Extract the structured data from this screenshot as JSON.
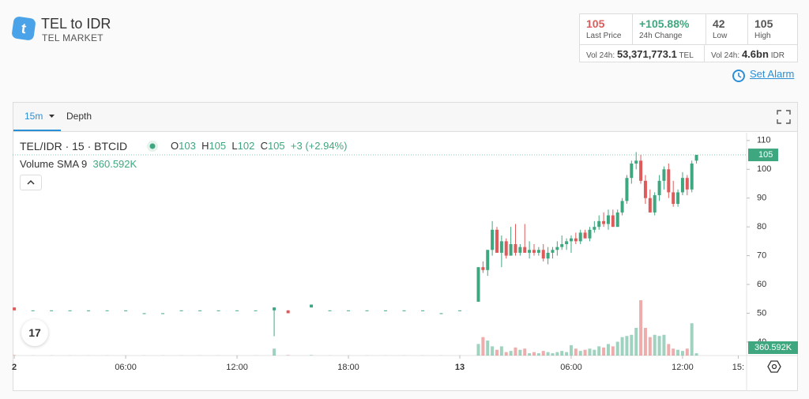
{
  "header": {
    "title": "TEL to IDR",
    "subtitle": "TEL MARKET",
    "logo": "t"
  },
  "stats": {
    "last_price": {
      "value": "105",
      "label": "Last Price"
    },
    "change": {
      "value": "+105.88%",
      "label": "24h Change"
    },
    "low": {
      "value": "42",
      "label": "Low"
    },
    "high": {
      "value": "105",
      "label": "High"
    },
    "vol_tel": {
      "label": "Vol 24h:",
      "value": "53,371,773.1",
      "unit": "TEL"
    },
    "vol_idr": {
      "label": "Vol 24h:",
      "value": "4.6bn",
      "unit": "IDR"
    }
  },
  "set_alarm": "Set Alarm",
  "tabs": [
    "15m",
    "Depth"
  ],
  "legend": {
    "symbol": "TEL/IDR · 15 · BTCID",
    "o_label": "O",
    "o": "103",
    "h_label": "H",
    "h": "105",
    "l_label": "L",
    "l": "102",
    "c_label": "C",
    "c": "105",
    "change": "+3 (+2.94%)",
    "sma_label": "Volume SMA 9",
    "sma_value": "360.592K"
  },
  "chart_data": {
    "type": "candlestick",
    "up_color": "#3fa77f",
    "down_color": "#df5a5a",
    "grid": false,
    "last_price": 105,
    "xlim": [
      -0.09,
      39.45
    ],
    "xticks": [
      {
        "value": 0,
        "label": "2"
      },
      {
        "value": 6,
        "label": "06:00"
      },
      {
        "value": 12,
        "label": "12:00"
      },
      {
        "value": 18,
        "label": "18:00"
      },
      {
        "value": 24,
        "label": "13"
      },
      {
        "value": 30,
        "label": "06:00"
      },
      {
        "value": 36,
        "label": "12:00"
      },
      {
        "value": 39,
        "label": "15:"
      }
    ],
    "ylim": [
      35.3,
      112.7
    ],
    "yticks": [
      40,
      50,
      60,
      70,
      80,
      90,
      100,
      110
    ],
    "x": [
      0,
      1,
      2,
      3,
      4,
      5,
      6,
      7,
      8,
      9,
      10,
      11,
      12,
      13,
      14,
      14.75,
      16,
      17,
      18,
      19,
      20,
      21,
      22,
      23,
      24,
      25,
      25.25,
      25.5,
      25.75,
      26,
      26.25,
      26.5,
      26.75,
      27,
      27.25,
      27.5,
      27.75,
      28,
      28.25,
      28.5,
      28.75,
      29,
      29.25,
      29.5,
      29.75,
      30,
      30.25,
      30.5,
      30.75,
      31,
      31.25,
      31.5,
      31.75,
      32,
      32.25,
      32.5,
      32.75,
      33,
      33.25,
      33.5,
      33.75,
      34,
      34.25,
      34.5,
      34.75,
      35,
      35.25,
      35.5,
      35.75,
      36,
      36.25,
      36.5,
      36.75
    ],
    "open": [
      52,
      51,
      51,
      51,
      51,
      51,
      51,
      50,
      50,
      51,
      51,
      51,
      51,
      51,
      51,
      51,
      52,
      51,
      51,
      51,
      51,
      51,
      51,
      50,
      51,
      54,
      66,
      65,
      72,
      79,
      71,
      75,
      70,
      74,
      71,
      73,
      71,
      72,
      71,
      72,
      69,
      71,
      72,
      73,
      74,
      75,
      76,
      75,
      78,
      76,
      79,
      80,
      82,
      81,
      84,
      80,
      85,
      89,
      97,
      102,
      103,
      96,
      90,
      85,
      91,
      96,
      100,
      92,
      88,
      92,
      97,
      93,
      103
    ],
    "high": [
      52,
      51,
      51,
      51,
      51,
      51,
      51,
      50,
      50,
      51,
      51,
      51,
      51,
      51,
      52,
      51,
      53,
      51,
      51,
      51,
      51,
      51,
      51,
      50,
      51,
      66,
      68,
      72,
      82,
      80,
      77,
      76,
      80,
      81,
      74,
      81,
      75,
      74,
      73,
      74,
      73,
      73,
      75,
      77,
      76,
      77,
      78,
      79,
      79,
      80,
      82,
      84,
      85,
      86,
      86,
      86,
      90,
      98,
      103,
      106,
      105,
      98,
      93,
      92,
      98,
      101,
      102,
      96,
      93,
      99,
      98,
      103,
      105
    ],
    "low": [
      51,
      51,
      51,
      51,
      51,
      51,
      51,
      50,
      50,
      51,
      51,
      51,
      51,
      51,
      42,
      50,
      52,
      51,
      51,
      51,
      51,
      51,
      51,
      50,
      51,
      54,
      64,
      63,
      70,
      71,
      66,
      69,
      70,
      70,
      70,
      71,
      69,
      70,
      70,
      68,
      67,
      69,
      70,
      72,
      72,
      71,
      74,
      74,
      76,
      75,
      78,
      79,
      80,
      79,
      80,
      80,
      84,
      88,
      95,
      100,
      95,
      88,
      85,
      84,
      89,
      93,
      90,
      87,
      87,
      91,
      91,
      92,
      102
    ],
    "close": [
      51,
      51,
      51,
      51,
      51,
      51,
      51,
      50,
      50,
      51,
      51,
      51,
      51,
      51,
      52,
      50,
      53,
      51,
      51,
      51,
      51,
      51,
      51,
      50,
      51,
      66,
      65,
      72,
      79,
      71,
      75,
      70,
      74,
      71,
      73,
      71,
      72,
      71,
      72,
      69,
      71,
      72,
      73,
      74,
      75,
      76,
      75,
      78,
      76,
      79,
      80,
      82,
      81,
      84,
      80,
      85,
      89,
      97,
      102,
      103,
      96,
      90,
      85,
      91,
      96,
      100,
      92,
      88,
      92,
      97,
      93,
      102,
      105
    ],
    "volume": [
      20000,
      5000,
      5000,
      5000,
      5000,
      5000,
      5000,
      5000,
      5000,
      5000,
      5000,
      5000,
      5000,
      5000,
      300000,
      20000,
      20000,
      5000,
      5000,
      5000,
      5000,
      5000,
      5000,
      5000,
      5000,
      500000,
      800000,
      650000,
      400000,
      250000,
      400000,
      150000,
      200000,
      350000,
      250000,
      300000,
      100000,
      150000,
      100000,
      200000,
      150000,
      100000,
      150000,
      200000,
      150000,
      450000,
      300000,
      200000,
      250000,
      300000,
      250000,
      400000,
      350000,
      500000,
      400000,
      600000,
      800000,
      850000,
      900000,
      1200000,
      2400000,
      1200000,
      800000,
      900000,
      850000,
      900000,
      500000,
      300000,
      250000,
      200000,
      300000,
      1400000,
      100000
    ]
  }
}
